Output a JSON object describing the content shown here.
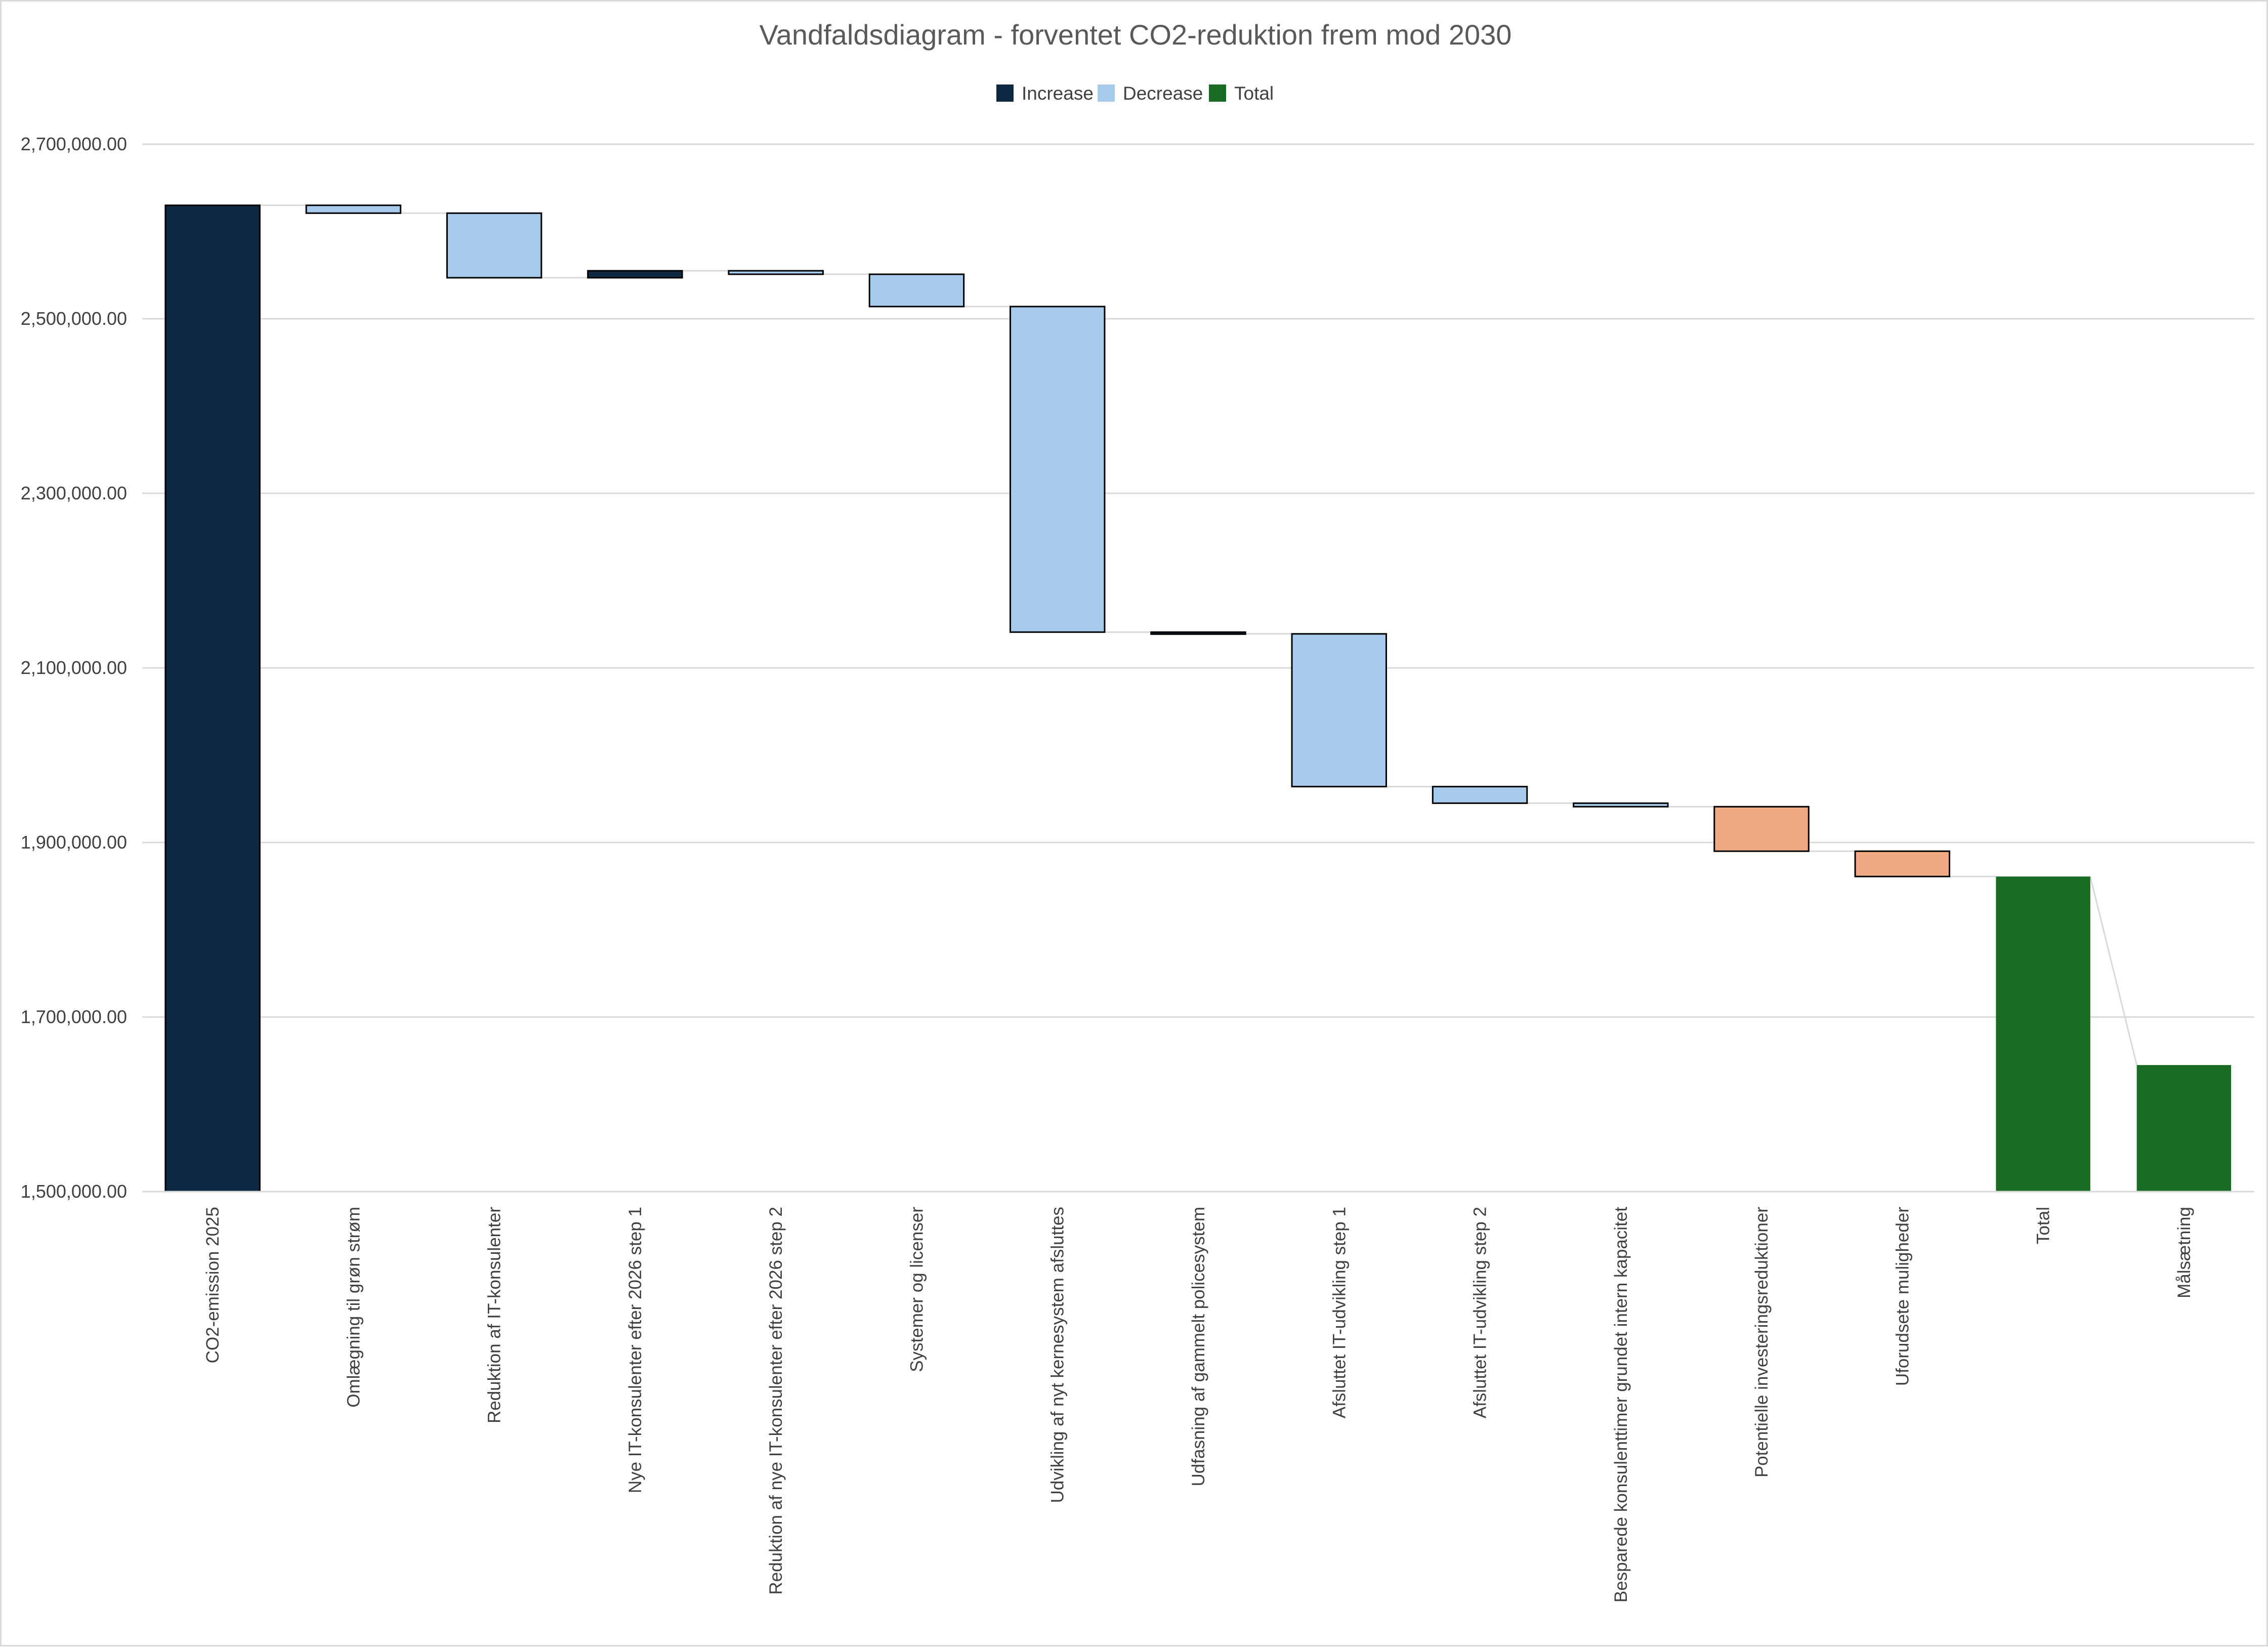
{
  "chart_data": {
    "type": "waterfall",
    "title": "Vandfaldsdiagram - forventet CO2-reduktion frem mod 2030",
    "legend": [
      {
        "name": "Increase",
        "color": "#0e2841"
      },
      {
        "name": "Decrease",
        "color": "#a6caec"
      },
      {
        "name": "Total",
        "color": "#196b24"
      }
    ],
    "legend_position": "top-center",
    "ylim": [
      1500000,
      2700000
    ],
    "yticks": [
      1500000,
      1700000,
      1900000,
      2100000,
      2300000,
      2500000,
      2700000
    ],
    "ytick_labels": [
      "1,500,000.00",
      "1,700,000.00",
      "1,900,000.00",
      "2,100,000.00",
      "2,300,000.00",
      "2,500,000.00",
      "2,700,000.00"
    ],
    "grid": true,
    "bars": [
      {
        "category": "CO2-emission 2025",
        "kind": "increase",
        "start": 0,
        "end": 2630000,
        "color": "#0e2841"
      },
      {
        "category": "Omlægning til grøn strøm",
        "kind": "decrease",
        "start": 2630000,
        "end": 2621000,
        "color": "#a6caec"
      },
      {
        "category": "Reduktion af IT-konsulenter",
        "kind": "decrease",
        "start": 2621000,
        "end": 2547000,
        "color": "#a6caec"
      },
      {
        "category": "Nye IT-konsulenter efter 2026 step 1",
        "kind": "increase",
        "start": 2547000,
        "end": 2555000,
        "color": "#0e2841"
      },
      {
        "category": "Reduktion af nye IT-konsulenter efter 2026 step 2",
        "kind": "decrease",
        "start": 2555000,
        "end": 2551000,
        "color": "#a6caec"
      },
      {
        "category": "Systemer og licenser",
        "kind": "decrease",
        "start": 2551000,
        "end": 2514000,
        "color": "#a6caec"
      },
      {
        "category": "Udvikling af nyt kernesystem afsluttes",
        "kind": "decrease",
        "start": 2514000,
        "end": 2141000,
        "color": "#a6caec"
      },
      {
        "category": "Udfasning af gammelt policesystem",
        "kind": "decrease",
        "start": 2141000,
        "end": 2139000,
        "color": "#0e2841"
      },
      {
        "category": "Afsluttet IT-udvikling step 1",
        "kind": "decrease",
        "start": 2139000,
        "end": 1964000,
        "color": "#a6caec"
      },
      {
        "category": "Afsluttet IT-udvikling step 2",
        "kind": "decrease",
        "start": 1964000,
        "end": 1945000,
        "color": "#a6caec"
      },
      {
        "category": "Besparede konsulenttimer grundet intern kapacitet",
        "kind": "decrease",
        "start": 1945000,
        "end": 1941000,
        "color": "#a6caec"
      },
      {
        "category": "Potentielle investeringsreduktioner",
        "kind": "decrease",
        "start": 1941000,
        "end": 1890000,
        "color": "#f1a983"
      },
      {
        "category": "Uforudsete muligheder",
        "kind": "decrease",
        "start": 1890000,
        "end": 1861000,
        "color": "#f1a983"
      },
      {
        "category": "Total",
        "kind": "total",
        "start": 0,
        "end": 1861000,
        "color": "#196b24"
      },
      {
        "category": "Målsætning",
        "kind": "total",
        "start": 0,
        "end": 1645000,
        "color": "#196b24"
      }
    ]
  }
}
